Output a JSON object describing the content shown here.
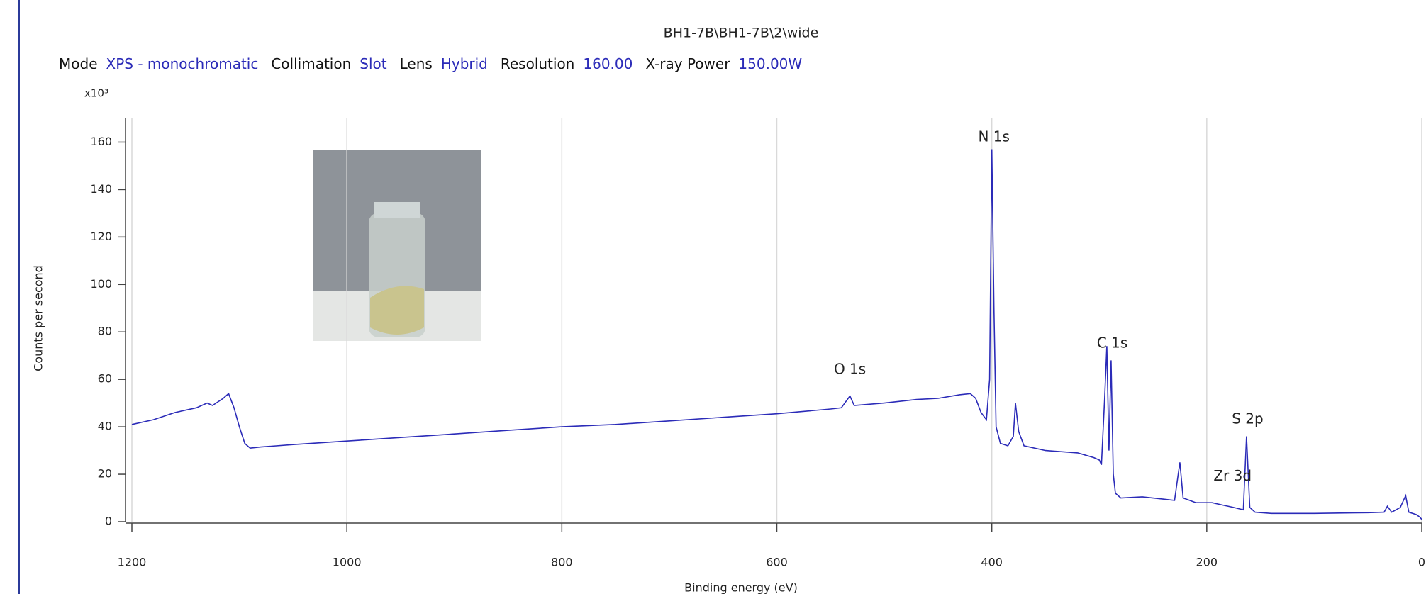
{
  "header": {
    "title": "BH1-7B\\BH1-7B\\2\\wide",
    "settings": [
      {
        "label": "Mode",
        "value": "XPS - monochromatic"
      },
      {
        "label": "Collimation",
        "value": "Slot"
      },
      {
        "label": "Lens",
        "value": "Hybrid"
      },
      {
        "label": "Resolution",
        "value": "160.00"
      },
      {
        "label": "X-ray Power",
        "value": "150.00W"
      }
    ]
  },
  "chart_data": {
    "type": "line",
    "y_multiplier": "x10³",
    "xlabel": "Binding energy (eV)",
    "ylabel": "Counts per second",
    "color": "#2b2bb8",
    "grid": true,
    "xlim": [
      1200,
      0
    ],
    "xticks": [
      1200,
      1000,
      800,
      600,
      400,
      200,
      0
    ],
    "ylim": [
      0,
      170
    ],
    "yticks": [
      0,
      20,
      40,
      60,
      80,
      100,
      120,
      140,
      160
    ],
    "x": [
      1200,
      1180,
      1160,
      1140,
      1130,
      1125,
      1115,
      1110,
      1105,
      1100,
      1095,
      1090,
      1080,
      1050,
      1000,
      950,
      900,
      850,
      800,
      750,
      700,
      650,
      600,
      550,
      540,
      532,
      528,
      500,
      470,
      450,
      430,
      420,
      415,
      410,
      405,
      402,
      400,
      398,
      396,
      392,
      385,
      380,
      378,
      375,
      370,
      350,
      320,
      305,
      300,
      298,
      295,
      293,
      291,
      289,
      287,
      285,
      280,
      260,
      240,
      230,
      225,
      222,
      210,
      195,
      185,
      175,
      166,
      163,
      160,
      155,
      140,
      100,
      50,
      35,
      32,
      28,
      20,
      15,
      12,
      5,
      2,
      0
    ],
    "values": [
      41,
      43,
      46,
      48,
      50,
      49,
      52,
      54,
      48,
      40,
      33,
      31,
      31.5,
      32.5,
      34,
      35.5,
      37,
      38.5,
      40,
      41,
      42.5,
      44,
      45.5,
      47.5,
      48,
      53,
      49,
      50,
      51.5,
      52,
      53.5,
      54,
      52,
      46,
      43,
      60,
      157,
      90,
      40,
      33,
      32,
      36,
      50,
      38,
      32,
      30,
      29,
      27,
      26,
      24,
      52,
      74,
      30,
      68,
      20,
      12,
      10,
      10.5,
      9.5,
      9,
      25,
      10,
      8,
      8,
      7,
      6,
      5,
      36,
      6,
      4,
      3.5,
      3.5,
      3.8,
      4,
      6.5,
      4,
      6,
      11,
      4,
      3,
      2,
      1
    ],
    "annotations": [
      {
        "text": "N 1s",
        "x": 398,
        "y": 162
      },
      {
        "text": "O 1s",
        "x": 532,
        "y": 64
      },
      {
        "text": "C 1s",
        "x": 288,
        "y": 75
      },
      {
        "text": "S 2p",
        "x": 162,
        "y": 43
      },
      {
        "text": "Zr 3d",
        "x": 176,
        "y": 19
      }
    ]
  }
}
